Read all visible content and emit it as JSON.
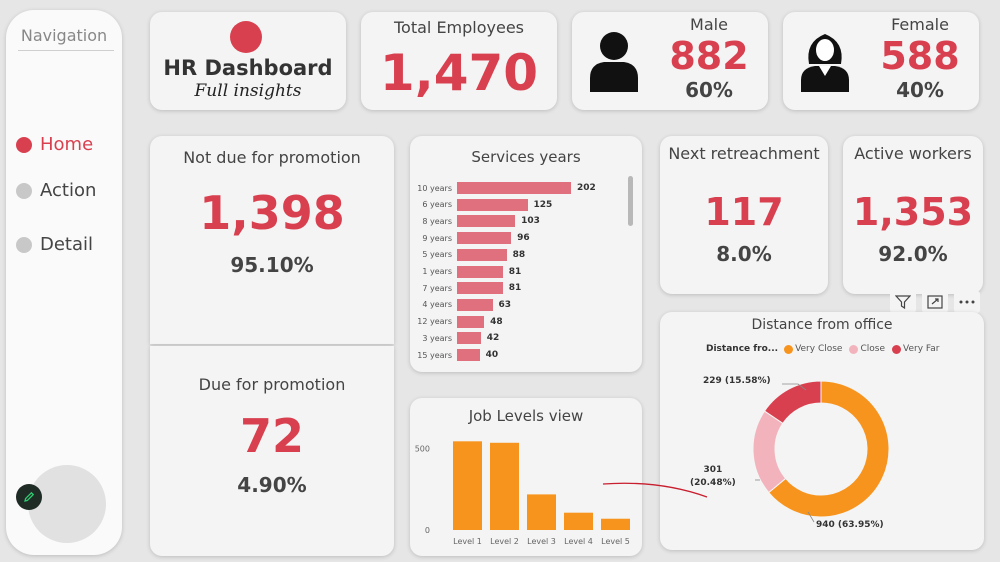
{
  "navigation": {
    "title": "Navigation",
    "items": [
      {
        "label": "Home",
        "active": true
      },
      {
        "label": "Action",
        "active": false
      },
      {
        "label": "Detail",
        "active": false
      }
    ]
  },
  "header": {
    "title": "HR Dashboard",
    "subtitle": "Full insights"
  },
  "total_employees": {
    "label": "Total Employees",
    "value": "1,470"
  },
  "male": {
    "label": "Male",
    "value": "882",
    "percent": "60%",
    "icon": "male-person-icon"
  },
  "female": {
    "label": "Female",
    "value": "588",
    "percent": "40%",
    "icon": "female-person-icon"
  },
  "not_due_promotion": {
    "label": "Not due for promotion",
    "value": "1,398",
    "percent": "95.10%"
  },
  "due_promotion": {
    "label": "Due for promotion",
    "value": "72",
    "percent": "4.90%"
  },
  "next_retreachment": {
    "label": "Next retreachment",
    "value": "117",
    "percent": "8.0%"
  },
  "active_workers": {
    "label": "Active workers",
    "value": "1,353",
    "percent": "92.0%"
  },
  "colors": {
    "accent": "#d9404f",
    "bar_pink": "#e0707d",
    "orange": "#f7941d",
    "light_pink": "#f2b3bc",
    "dark_red": "#d9404f"
  },
  "chart_data": [
    {
      "type": "bar",
      "orientation": "horizontal",
      "title": "Services years",
      "categories": [
        "10 years",
        "6 years",
        "8 years",
        "9 years",
        "5 years",
        "1 years",
        "7 years",
        "4 years",
        "12 years",
        "3 years",
        "15 years"
      ],
      "values": [
        202,
        125,
        103,
        96,
        88,
        81,
        81,
        63,
        48,
        42,
        40
      ],
      "value_labels": [
        "202",
        "125",
        "103",
        "96",
        "88",
        "81",
        "81",
        "63",
        "48",
        "42",
        "40"
      ]
    },
    {
      "type": "bar",
      "title": "Job Levels view",
      "categories": [
        "Level 1",
        "Level 2",
        "Level 3",
        "Level 4",
        "Level 5"
      ],
      "values": [
        543,
        534,
        218,
        106,
        69
      ],
      "y_ticks": [
        "500",
        "0"
      ],
      "ylim": [
        0,
        600
      ],
      "grid": false
    },
    {
      "type": "pie",
      "donut": true,
      "title": "Distance from office",
      "legend_title": "Distance fro...",
      "legend_position": "top",
      "categories": [
        "Very Close",
        "Close",
        "Very Far"
      ],
      "values": [
        940,
        301,
        229
      ],
      "labels": [
        "940 (63.95%)",
        "301\n(20.48%)",
        "229 (15.58%)"
      ],
      "colors": [
        "#f7941d",
        "#f2b3bc",
        "#d9404f"
      ]
    }
  ]
}
